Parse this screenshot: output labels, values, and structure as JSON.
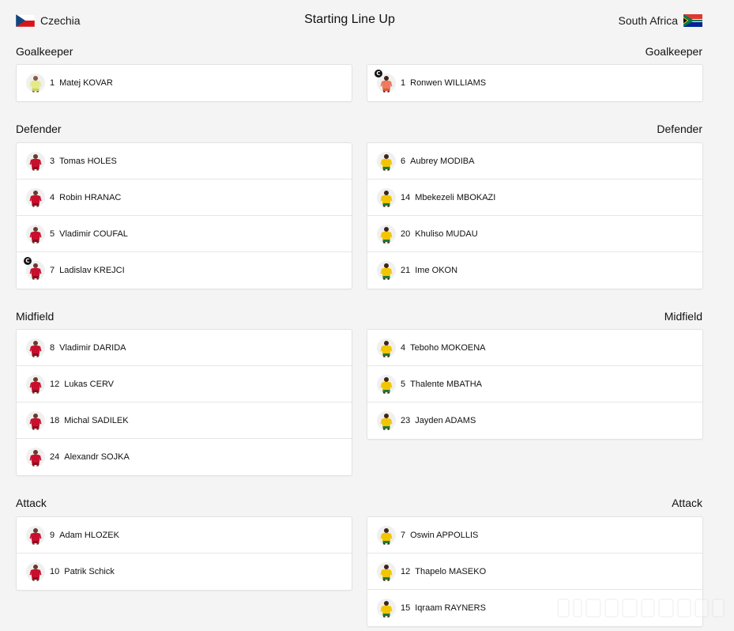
{
  "header": {
    "home_team": "Czechia",
    "away_team": "South Africa",
    "title": "Starting Line Up"
  },
  "sections": [
    {
      "label": "Goalkeeper",
      "home": [
        {
          "number": "1",
          "name": "Matej KOVAR",
          "kit": "gk-yellow",
          "captain": false
        }
      ],
      "away": [
        {
          "number": "1",
          "name": "Ronwen WILLIAMS",
          "kit": "gk-orange",
          "captain": true
        }
      ]
    },
    {
      "label": "Defender",
      "home": [
        {
          "number": "3",
          "name": "Tomas HOLES",
          "kit": "red",
          "captain": false
        },
        {
          "number": "4",
          "name": "Robin HRANAC",
          "kit": "red",
          "captain": false
        },
        {
          "number": "5",
          "name": "Vladimir COUFAL",
          "kit": "red",
          "captain": false
        },
        {
          "number": "7",
          "name": "Ladislav KREJCI",
          "kit": "red",
          "captain": true
        }
      ],
      "away": [
        {
          "number": "6",
          "name": "Aubrey MODIBA",
          "kit": "yellow",
          "captain": false
        },
        {
          "number": "14",
          "name": "Mbekezeli MBOKAZI",
          "kit": "yellow",
          "captain": false
        },
        {
          "number": "20",
          "name": "Khuliso MUDAU",
          "kit": "yellow",
          "captain": false
        },
        {
          "number": "21",
          "name": "Ime OKON",
          "kit": "yellow",
          "captain": false
        }
      ]
    },
    {
      "label": "Midfield",
      "home": [
        {
          "number": "8",
          "name": "Vladimir DARIDA",
          "kit": "red",
          "captain": false
        },
        {
          "number": "12",
          "name": "Lukas CERV",
          "kit": "red",
          "captain": false
        },
        {
          "number": "18",
          "name": "Michal SADILEK",
          "kit": "red",
          "captain": false
        },
        {
          "number": "24",
          "name": "Alexandr SOJKA",
          "kit": "red",
          "captain": false
        }
      ],
      "away": [
        {
          "number": "4",
          "name": "Teboho MOKOENA",
          "kit": "yellow",
          "captain": false
        },
        {
          "number": "5",
          "name": "Thalente MBATHA",
          "kit": "yellow",
          "captain": false
        },
        {
          "number": "23",
          "name": "Jayden ADAMS",
          "kit": "yellow",
          "captain": false
        }
      ]
    },
    {
      "label": "Attack",
      "home": [
        {
          "number": "9",
          "name": "Adam HLOZEK",
          "kit": "red",
          "captain": false
        },
        {
          "number": "10",
          "name": "Patrik Schick",
          "kit": "red",
          "captain": false
        }
      ],
      "away": [
        {
          "number": "7",
          "name": "Oswin APPOLLIS",
          "kit": "yellow",
          "captain": false
        },
        {
          "number": "12",
          "name": "Thapelo MASEKO",
          "kit": "yellow",
          "captain": false
        },
        {
          "number": "15",
          "name": "Iqraam RAYNERS",
          "kit": "yellow",
          "captain": false
        }
      ]
    }
  ],
  "captain_badge": "C",
  "kit_colors": {
    "red": {
      "shirt": "#c8102e",
      "shorts": "#8e0c20",
      "skin": "#6b3a2a"
    },
    "yellow": {
      "shirt": "#f2c500",
      "shorts": "#1e7b34",
      "skin": "#3d2618"
    },
    "gk-yellow": {
      "shirt": "#e3ea8a",
      "shorts": "#c9cf6a",
      "skin": "#8a5a42"
    },
    "gk-orange": {
      "shirt": "#f07a5c",
      "shorts": "#d45a3f",
      "skin": "#3d2618"
    }
  },
  "icons": {
    "home_flag": "czech-flag-icon",
    "away_flag": "south-africa-flag-icon",
    "player": "player-kit-icon",
    "captain": "captain-badge-icon"
  }
}
